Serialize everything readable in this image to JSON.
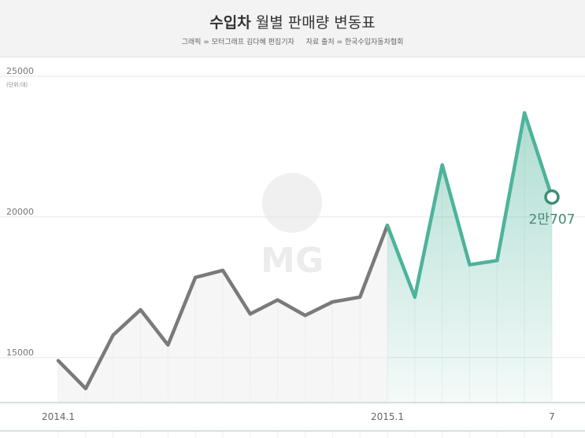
{
  "header": {
    "title_bold": "수입차",
    "title_rest": " 월별 판매량 변동표",
    "credit_graphic": "그래픽 = 모터그래프 김다혜 편집기자",
    "credit_source": "자료 출처 = 한국수입자동차협회"
  },
  "watermark": {
    "text": "MG"
  },
  "chart_data": {
    "type": "area",
    "unit": "(단위:대)",
    "x": [
      "2014.1",
      "2014.2",
      "2014.3",
      "2014.4",
      "2014.5",
      "2014.6",
      "2014.7",
      "2014.8",
      "2014.9",
      "2014.10",
      "2014.11",
      "2014.12",
      "2015.1",
      "2015.2",
      "2015.3",
      "2015.4",
      "2015.5",
      "2015.6",
      "2015.7"
    ],
    "x_tick_labels": [
      {
        "index": 0,
        "label": "2014.1"
      },
      {
        "index": 12,
        "label": "2015.1"
      },
      {
        "index": 18,
        "label": "7"
      }
    ],
    "series": [
      {
        "values": [
          14890,
          13900,
          15800,
          16700,
          15450,
          17850,
          18100,
          16550,
          17050,
          16500,
          16980,
          17150,
          19700,
          17150,
          21850,
          18300,
          18450,
          23700,
          20707
        ]
      }
    ],
    "highlight_from_index": 12,
    "yticks": [
      15000,
      20000,
      25000
    ],
    "ytick_labels": [
      "15000",
      "20000",
      "25000"
    ],
    "ylim": [
      13400,
      25000
    ],
    "last_point_label": "2만707",
    "colors": {
      "series_2014": "#7a7a7a",
      "series_2015": "#4db39b",
      "fill_2015": "#cfe6de",
      "fill_2014": "#f0f0f0",
      "marker": "#3f8c76"
    }
  }
}
